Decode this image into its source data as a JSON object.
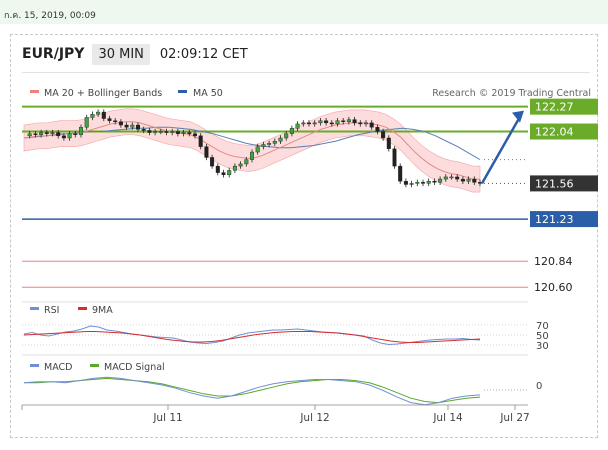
{
  "date_label": "ก.ค. 15, 2019, 00:09",
  "header": {
    "pair": "EUR/JPY",
    "timeframe": "30 MIN",
    "time": "02:09:12 CET"
  },
  "legend": {
    "ma20": "MA 20 + Bollinger Bands",
    "ma50": "MA 50",
    "credit": "Research © 2019 Trading Central"
  },
  "colors": {
    "green": "#6aab2a",
    "blue": "#2c5da8",
    "red": "#f08080",
    "dark": "#333333",
    "bb_fill": "#fbd0d0"
  },
  "chart_data": [
    {
      "type": "line",
      "title": "EUR/JPY",
      "x_ticks": [
        "Jul 11",
        "Jul 12",
        "Jul 14",
        "Jul 27"
      ],
      "ylim": [
        120.5,
        122.35
      ],
      "series": [
        {
          "name": "EUR/JPY",
          "values": [
            122.0,
            122.02,
            122.01,
            122.03,
            122.02,
            122.03,
            122.0,
            121.98,
            122.02,
            122.01,
            122.08,
            122.17,
            122.2,
            122.22,
            122.16,
            122.14,
            122.13,
            122.1,
            122.08,
            122.1,
            122.06,
            122.05,
            122.03,
            122.04,
            122.04,
            122.03,
            122.04,
            122.02,
            122.03,
            122.02,
            122.0,
            121.9,
            121.8,
            121.72,
            121.66,
            121.64,
            121.68,
            121.72,
            121.74,
            121.78,
            121.85,
            121.9,
            121.92,
            121.93,
            121.95,
            121.98,
            122.02,
            122.07,
            122.11,
            122.12,
            122.11,
            122.12,
            122.14,
            122.12,
            122.11,
            122.14,
            122.13,
            122.15,
            122.12,
            122.11,
            122.12,
            122.08,
            122.04,
            121.98,
            121.88,
            121.72,
            121.58,
            121.55,
            121.56,
            121.57,
            121.56,
            121.58,
            121.57,
            121.6,
            121.62,
            121.62,
            121.6,
            121.58,
            121.6,
            121.57,
            121.56
          ]
        },
        {
          "name": "MA 20",
          "values": [
            121.98,
            121.99,
            122.0,
            122.0,
            122.01,
            122.02,
            122.02,
            122.02,
            122.03,
            122.05,
            122.07,
            122.09,
            122.11,
            122.12,
            122.13,
            122.13,
            122.12,
            122.1,
            122.08,
            122.06,
            122.04,
            122.03,
            122.02,
            122.01,
            121.98,
            121.94,
            121.9,
            121.86,
            121.83,
            121.81,
            121.8,
            121.79,
            121.8,
            121.82,
            121.85,
            121.88,
            121.91,
            121.94,
            121.97,
            122.0,
            122.03,
            122.06,
            122.08,
            122.1,
            122.11,
            122.12,
            122.12,
            122.12,
            122.11,
            122.1,
            122.08,
            122.04,
            121.99,
            121.92,
            121.85,
            121.79,
            121.74,
            121.7,
            121.67,
            121.65,
            121.64,
            121.62,
            121.6,
            121.6
          ]
        },
        {
          "name": "MA 50",
          "values": [
            121.98,
            121.99,
            122.0,
            122.01,
            122.02,
            122.03,
            122.04,
            122.04,
            122.05,
            122.06,
            122.07,
            122.07,
            122.08,
            122.08,
            122.07,
            122.06,
            122.04,
            122.02,
            121.99,
            121.96,
            121.93,
            121.91,
            121.9,
            121.89,
            121.89,
            121.9,
            121.91,
            121.93,
            121.95,
            121.98,
            122.01,
            122.03,
            122.05,
            122.06,
            122.07,
            122.06,
            122.04,
            122.0,
            121.95,
            121.9,
            121.84,
            121.78
          ]
        }
      ],
      "levels": [
        {
          "value": 122.27,
          "label": "122.27",
          "color": "#6aab2a",
          "kind": "resistance"
        },
        {
          "value": 122.04,
          "label": "122.04",
          "color": "#6aab2a",
          "kind": "resistance"
        },
        {
          "value": 121.56,
          "label": "121.56",
          "color": "#333333",
          "kind": "last"
        },
        {
          "value": 121.23,
          "label": "121.23",
          "color": "#2c5da8",
          "kind": "support"
        },
        {
          "value": 120.84,
          "label": "120.84",
          "color": "#f08080",
          "kind": "support"
        },
        {
          "value": 120.6,
          "label": "120.60",
          "color": "#f08080",
          "kind": "support"
        }
      ],
      "forecast": {
        "from": 121.56,
        "to": 122.27
      }
    },
    {
      "type": "line",
      "ylim": [
        20,
        80
      ],
      "y_ticks": [
        "70",
        "50",
        "30"
      ],
      "series": [
        {
          "name": "RSI",
          "values": [
            52,
            55,
            50,
            48,
            52,
            56,
            58,
            62,
            68,
            66,
            60,
            58,
            55,
            52,
            50,
            48,
            46,
            45,
            44,
            40,
            36,
            34,
            33,
            35,
            38,
            44,
            50,
            54,
            56,
            58,
            60,
            60,
            61,
            62,
            60,
            58,
            56,
            55,
            54,
            52,
            50,
            48,
            40,
            34,
            31,
            32,
            34,
            36,
            38,
            40,
            41,
            42,
            42,
            43,
            41,
            40
          ]
        },
        {
          "name": "9MA",
          "values": [
            50,
            51,
            52,
            53,
            54,
            55,
            56,
            57,
            57,
            56,
            55,
            54,
            52,
            50,
            47,
            44,
            41,
            39,
            37,
            36,
            36,
            37,
            39,
            42,
            45,
            48,
            51,
            53,
            55,
            56,
            57,
            57,
            57,
            56,
            55,
            54,
            52,
            50,
            47,
            44,
            41,
            38,
            36,
            35,
            35,
            36,
            37,
            38,
            39,
            40,
            41,
            42
          ]
        }
      ],
      "legend": [
        "RSI",
        "9MA"
      ]
    },
    {
      "type": "line",
      "y_ticks": [
        "0"
      ],
      "series": [
        {
          "name": "MACD",
          "values": [
            0.02,
            0.03,
            0.03,
            0.02,
            0.04,
            0.06,
            0.07,
            0.06,
            0.04,
            0.02,
            0.0,
            -0.03,
            -0.07,
            -0.1,
            -0.12,
            -0.1,
            -0.06,
            -0.02,
            0.01,
            0.03,
            0.04,
            0.05,
            0.05,
            0.04,
            0.03,
            0.0,
            -0.05,
            -0.11,
            -0.16,
            -0.18,
            -0.16,
            -0.12,
            -0.1,
            -0.09
          ]
        },
        {
          "name": "MACD Signal",
          "values": [
            0.02,
            0.02,
            0.03,
            0.03,
            0.04,
            0.05,
            0.06,
            0.05,
            0.04,
            0.03,
            0.01,
            -0.02,
            -0.05,
            -0.08,
            -0.1,
            -0.1,
            -0.08,
            -0.05,
            -0.02,
            0.01,
            0.03,
            0.04,
            0.05,
            0.05,
            0.04,
            0.02,
            -0.02,
            -0.07,
            -0.12,
            -0.15,
            -0.16,
            -0.14,
            -0.12,
            -0.11
          ]
        }
      ],
      "legend": [
        "MACD",
        "MACD Signal"
      ]
    }
  ]
}
